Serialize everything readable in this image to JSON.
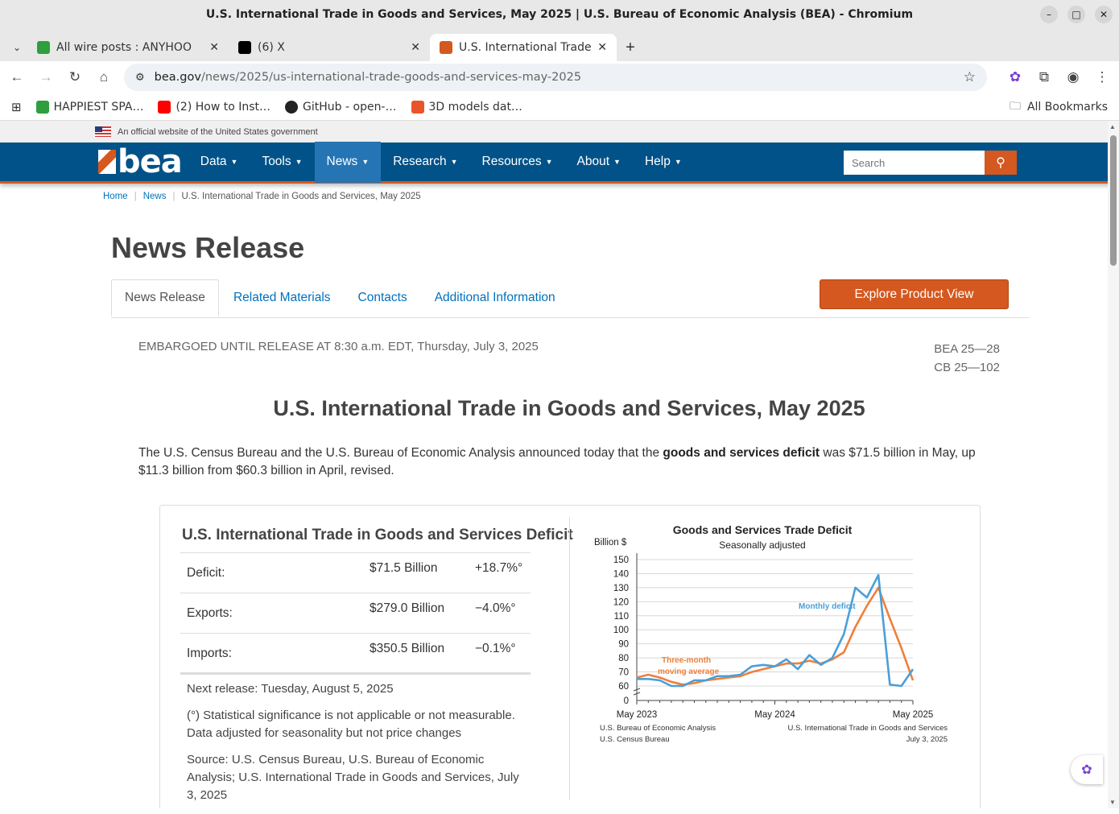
{
  "window": {
    "title": "U.S. International Trade in Goods and Services, May 2025 | U.S. Bureau of Economic Analysis (BEA) - Chromium",
    "minimize_icon": "–",
    "maximize_icon": "□",
    "close_icon": "✕"
  },
  "browser": {
    "tabs": [
      {
        "label": "All wire posts : ANYHOO",
        "favicon_color": "#2e9e3e",
        "close": "✕"
      },
      {
        "label": "(6) X",
        "favicon_color": "#000000",
        "close": "✕"
      },
      {
        "label": "U.S. International Trade in",
        "favicon_color": "#d4581f",
        "close": "✕"
      }
    ],
    "new_tab": "+",
    "url_host": "bea.gov",
    "url_path": "/news/2025/us-international-trade-goods-and-services-may-2025",
    "bookmarks": [
      {
        "label": "HAPPIEST SPA…",
        "color": "#2e9e3e"
      },
      {
        "label": "(2) How to Inst…",
        "color": "#ff0000"
      },
      {
        "label": "GitHub - open-…",
        "color": "#222222"
      },
      {
        "label": "3D models dat…",
        "color": "#e8552a"
      }
    ],
    "all_bookmarks": "All Bookmarks"
  },
  "site": {
    "gov_banner": "An official website of the United States government",
    "logo_text": "bea",
    "nav": [
      "Data",
      "Tools",
      "News",
      "Research",
      "Resources",
      "About",
      "Help"
    ],
    "search_placeholder": "Search",
    "breadcrumb": [
      "Home",
      "News",
      "U.S. International Trade in Goods and Services, May 2025"
    ],
    "page_title": "News Release",
    "tabs": [
      "News Release",
      "Related Materials",
      "Contacts",
      "Additional Information"
    ],
    "explore_button": "Explore Product View",
    "embargo": "EMBARGOED UNTIL RELEASE AT 8:30 a.m. EDT, Thursday, July 3, 2025",
    "code1": "BEA 25—28",
    "code2": "CB 25—102",
    "headline": "U.S. International Trade in Goods and Services, May 2025",
    "lead_pre": "The U.S. Census Bureau and the U.S. Bureau of Economic Analysis announced today that the ",
    "lead_bold": "goods and services deficit",
    "lead_post": " was $71.5 billion in May, up $11.3 billion from $60.3 billion in April, revised."
  },
  "summary_table": {
    "title": "U.S. International Trade in Goods and Services Deficit",
    "rows": [
      {
        "label": "Deficit:",
        "value": "$71.5 Billion",
        "change": "+18.7%°"
      },
      {
        "label": "Exports:",
        "value": "$279.0 Billion",
        "change": "−4.0%°"
      },
      {
        "label": "Imports:",
        "value": "$350.5 Billion",
        "change": "−0.1%°"
      }
    ],
    "next_release": "Next release: Tuesday, August 5, 2025",
    "note1": "(°) Statistical significance is not applicable or not measurable. Data adjusted for seasonality but not price changes",
    "source": "Source: U.S. Census Bureau, U.S. Bureau of Economic Analysis; U.S. International Trade in Goods and Services, July 3, 2025"
  },
  "chart_data": {
    "type": "line",
    "title": "Goods and Services Trade Deficit",
    "subtitle": "Seasonally adjusted",
    "ylabel": "Billion $",
    "ylim": [
      0,
      150
    ],
    "yticks": [
      0,
      60,
      70,
      80,
      90,
      100,
      110,
      120,
      130,
      140,
      150
    ],
    "xtick_labels": [
      "May 2023",
      "May 2024",
      "May 2025"
    ],
    "x": [
      "2023-05",
      "2023-06",
      "2023-07",
      "2023-08",
      "2023-09",
      "2023-10",
      "2023-11",
      "2023-12",
      "2024-01",
      "2024-02",
      "2024-03",
      "2024-04",
      "2024-05",
      "2024-06",
      "2024-07",
      "2024-08",
      "2024-09",
      "2024-10",
      "2024-11",
      "2024-12",
      "2025-01",
      "2025-02",
      "2025-03",
      "2025-04",
      "2025-05"
    ],
    "series": [
      {
        "name": "Monthly deficit",
        "color": "#4a9fd8",
        "values": [
          65,
          65,
          64,
          60,
          60,
          64,
          64,
          67,
          67,
          68,
          74,
          75,
          74,
          79,
          72,
          82,
          75,
          80,
          97,
          130,
          123,
          139,
          61,
          60,
          72
        ]
      },
      {
        "name": "Three-month moving average",
        "color": "#f07f3a",
        "values": [
          66,
          68,
          66,
          63,
          61,
          62,
          64,
          65,
          66,
          67,
          70,
          72,
          74,
          76,
          76,
          78,
          76,
          79,
          84,
          102,
          117,
          130,
          108,
          87,
          64
        ]
      }
    ],
    "footer_left_1": "U.S. Bureau of Economic Analysis",
    "footer_left_2": "U.S. Census Bureau",
    "footer_right_1": "U.S. International Trade in Goods and Services",
    "footer_right_2": "July 3, 2025"
  }
}
